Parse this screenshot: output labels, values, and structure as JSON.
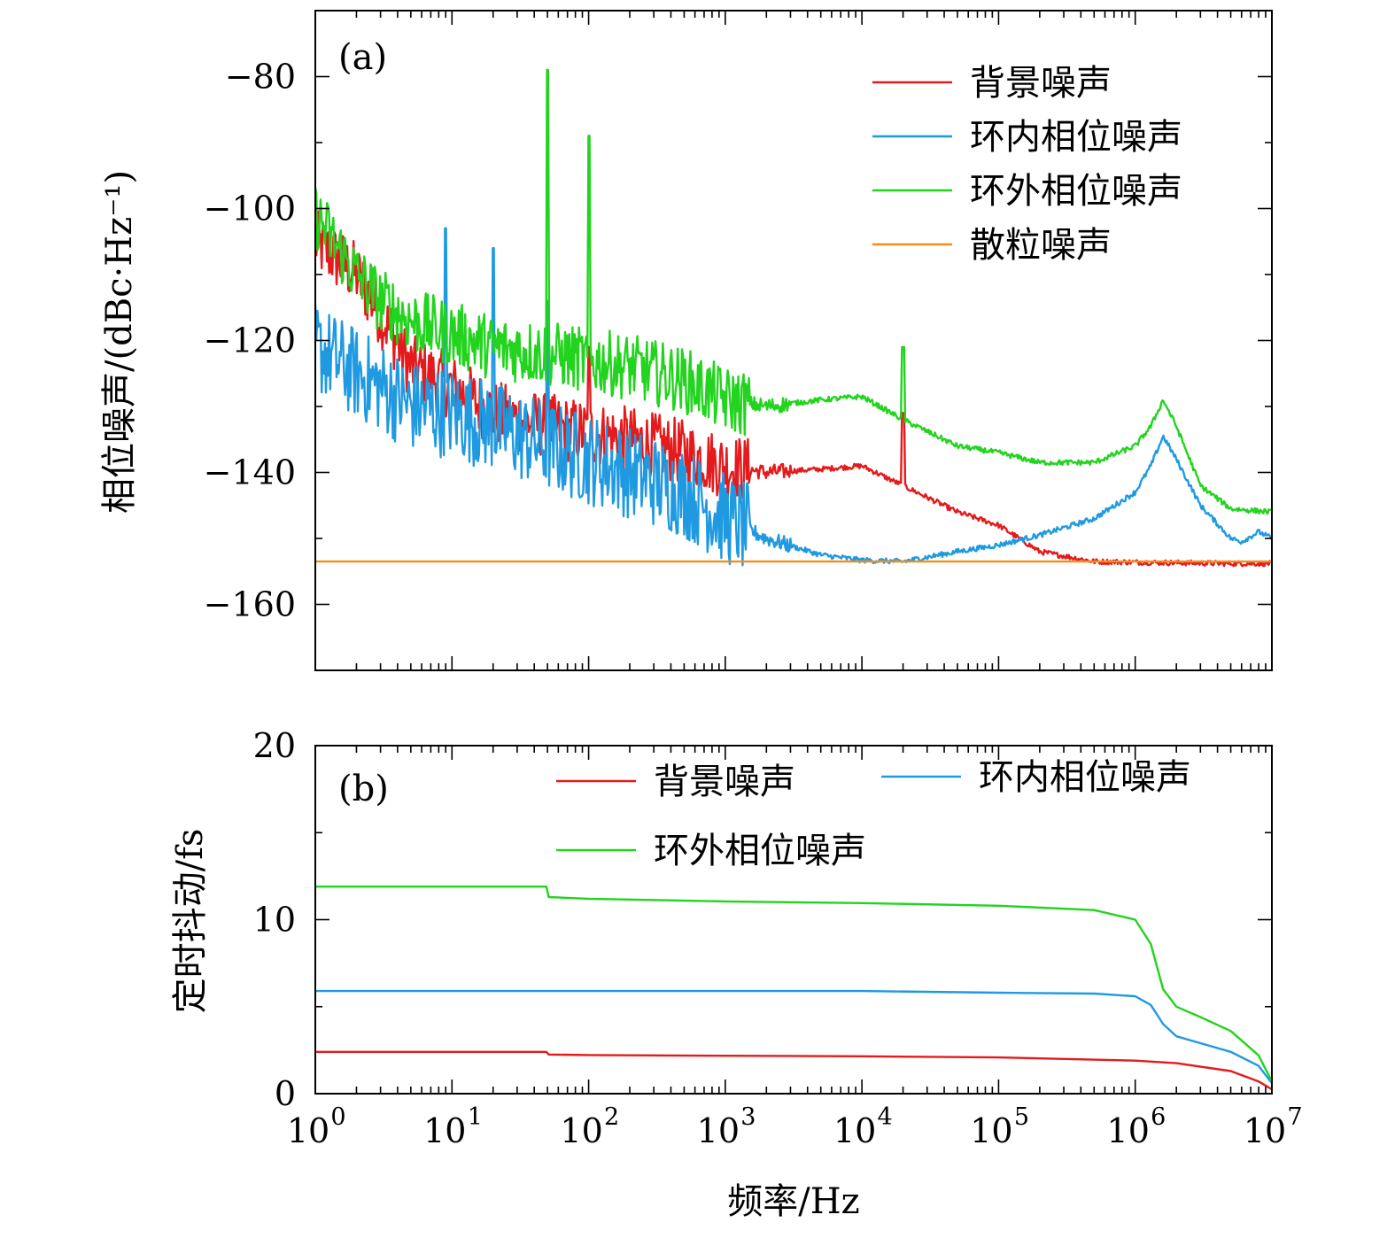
{
  "figure": {
    "xlabel": "频率/Hz"
  },
  "chart_data": [
    {
      "panel": "(a)",
      "type": "line",
      "xscale": "log",
      "xlim": [
        1,
        10000000
      ],
      "ylim": [
        -170,
        -70
      ],
      "ylabel": "相位噪声/(dBc·Hz⁻¹)",
      "yticks": [
        -80,
        -100,
        -120,
        -140,
        -160
      ],
      "ytick_labels": [
        "−80",
        "−100",
        "−120",
        "−140",
        "−160"
      ],
      "legend_position": "top-right",
      "series": [
        {
          "name": "背景噪声",
          "color": "#e41a1c",
          "x": [
            1,
            2,
            3,
            5,
            10,
            20,
            50,
            100,
            200,
            500,
            1000,
            2000,
            5000,
            10000,
            20000,
            50000,
            100000,
            200000,
            500000,
            1000000,
            2000000,
            5000000,
            10000000
          ],
          "y": [
            -105,
            -110,
            -116,
            -124,
            -127,
            -131,
            -133,
            -134,
            -135,
            -137,
            -139,
            -140,
            -139.5,
            -139,
            -142,
            -146,
            -148,
            -152,
            -153.5,
            -153.6,
            -153.7,
            -153.8,
            -153.8
          ],
          "spikes": [
            {
              "x": 50,
              "y": -118
            },
            {
              "x": 100,
              "y": -121
            },
            {
              "x": 20000,
              "y": -131
            }
          ]
        },
        {
          "name": "环内相位噪声",
          "color": "#1f9ae0",
          "x": [
            1,
            2,
            3,
            5,
            10,
            20,
            50,
            100,
            200,
            500,
            1000,
            2000,
            5000,
            10000,
            20000,
            50000,
            100000,
            200000,
            500000,
            1000000,
            1300000,
            1600000,
            2000000,
            3000000,
            5000000,
            6000000,
            8000000,
            10000000
          ],
          "y": [
            -121,
            -125,
            -127,
            -130,
            -131,
            -133,
            -136,
            -138,
            -140,
            -143,
            -147,
            -150,
            -152.5,
            -153.3,
            -153.5,
            -152,
            -151,
            -149.5,
            -147,
            -143,
            -139,
            -134.5,
            -138,
            -145,
            -150,
            -150.5,
            -149,
            -150
          ],
          "spikes": [
            {
              "x": 9,
              "y": -103
            },
            {
              "x": 20,
              "y": -106
            },
            {
              "x": 50,
              "y": -114
            }
          ]
        },
        {
          "name": "环外相位噪声",
          "color": "#22d41e",
          "x": [
            1,
            2,
            3,
            5,
            10,
            20,
            50,
            100,
            200,
            500,
            1000,
            2000,
            5000,
            10000,
            20000,
            50000,
            100000,
            200000,
            500000,
            1000000,
            1300000,
            1600000,
            2000000,
            3000000,
            5000000,
            10000000
          ],
          "y": [
            -101,
            -110,
            -114,
            -117,
            -119,
            -121,
            -122,
            -123,
            -124,
            -126,
            -129,
            -130,
            -129,
            -128.5,
            -132,
            -136,
            -137,
            -138.5,
            -138.5,
            -136,
            -133,
            -129,
            -133,
            -142,
            -145.5,
            -146
          ],
          "spikes": [
            {
              "x": 50,
              "y": -79
            },
            {
              "x": 100,
              "y": -89
            },
            {
              "x": 20000,
              "y": -121
            }
          ]
        },
        {
          "name": "散粒噪声",
          "color": "#f28e1c",
          "x": [
            1,
            10000000
          ],
          "y": [
            -153.5,
            -153.5
          ]
        }
      ]
    },
    {
      "panel": "(b)",
      "type": "line",
      "xscale": "log",
      "xlim": [
        1,
        10000000
      ],
      "ylim": [
        0,
        20
      ],
      "ylabel": "定时抖动/fs",
      "yticks": [
        0,
        10,
        20
      ],
      "ytick_labels": [
        "0",
        "10",
        "20"
      ],
      "legend_position": "top",
      "series": [
        {
          "name": "背景噪声",
          "color": "#e41a1c",
          "x": [
            1,
            49,
            51,
            100,
            1000,
            10000,
            100000,
            1000000,
            2000000,
            5000000,
            8000000,
            10000000
          ],
          "y": [
            2.4,
            2.4,
            2.25,
            2.22,
            2.18,
            2.15,
            2.08,
            1.9,
            1.75,
            1.3,
            0.7,
            0.25
          ]
        },
        {
          "name": "环内相位噪声",
          "color": "#1f9ae0",
          "x": [
            1,
            1000,
            10000,
            100000,
            500000,
            1000000,
            1300000,
            1600000,
            2000000,
            3000000,
            5000000,
            8000000,
            10000000
          ],
          "y": [
            5.9,
            5.9,
            5.9,
            5.8,
            5.75,
            5.6,
            5.1,
            4.0,
            3.3,
            2.9,
            2.4,
            1.6,
            0.6
          ]
        },
        {
          "name": "环外相位噪声",
          "color": "#22d41e",
          "x": [
            1,
            49,
            51,
            100,
            1000,
            10000,
            100000,
            500000,
            1000000,
            1300000,
            1600000,
            2000000,
            3000000,
            5000000,
            8000000,
            10000000
          ],
          "y": [
            11.9,
            11.9,
            11.3,
            11.2,
            11.05,
            10.95,
            10.8,
            10.55,
            10.0,
            8.6,
            6.0,
            5.0,
            4.4,
            3.6,
            2.2,
            0.7
          ]
        }
      ]
    }
  ]
}
